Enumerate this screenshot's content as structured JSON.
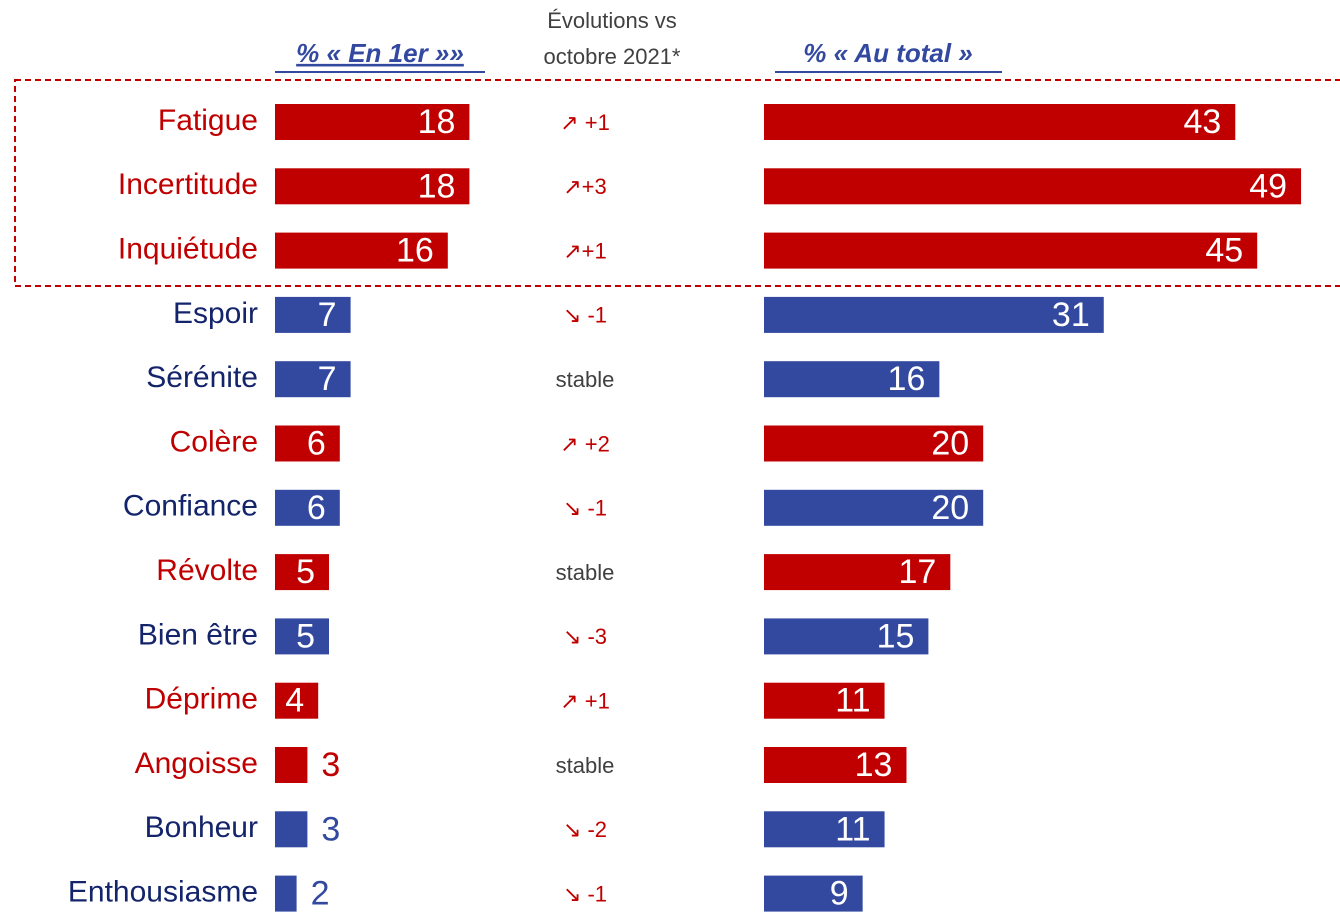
{
  "chart_data": {
    "type": "bar",
    "categories": [
      "Fatigue",
      "Incertitude",
      "Inquiétude",
      "Espoir",
      "Sérénite",
      "Colère",
      "Confiance",
      "Révolte",
      "Bien être",
      "Déprime",
      "Angoisse",
      "Bonheur",
      "Enthousiasme"
    ],
    "colors": [
      "#c00000",
      "#c00000",
      "#c00000",
      "#3349a0",
      "#3349a0",
      "#c00000",
      "#3349a0",
      "#c00000",
      "#3349a0",
      "#c00000",
      "#c00000",
      "#3349a0",
      "#3349a0"
    ],
    "label_colors": [
      "#c00000",
      "#c00000",
      "#c00000",
      "#14246b",
      "#14246b",
      "#c00000",
      "#14246b",
      "#c00000",
      "#14246b",
      "#c00000",
      "#c00000",
      "#14246b",
      "#14246b"
    ],
    "series": [
      {
        "name": "% « En 1er »»",
        "values": [
          18,
          18,
          16,
          7,
          7,
          6,
          6,
          5,
          5,
          4,
          3,
          3,
          2
        ]
      },
      {
        "name": "% « Au total »",
        "values": [
          43,
          49,
          45,
          31,
          16,
          20,
          20,
          17,
          15,
          11,
          13,
          11,
          9
        ]
      }
    ],
    "evolution_title": [
      "Évolutions vs",
      "octobre 2021*"
    ],
    "evolutions": [
      "↗ +1",
      "↗+3",
      "↗+1",
      "↘ -1",
      "stable",
      "↗ +2",
      "↘ -1",
      "stable",
      "↘ -3",
      "↗ +1",
      "stable",
      "↘ -2",
      "↘ -1"
    ],
    "evolution_colors": [
      "#c00000",
      "#c00000",
      "#c00000",
      "#c00000",
      "#404040",
      "#c00000",
      "#c00000",
      "#404040",
      "#c00000",
      "#c00000",
      "#404040",
      "#c00000",
      "#c00000"
    ]
  }
}
